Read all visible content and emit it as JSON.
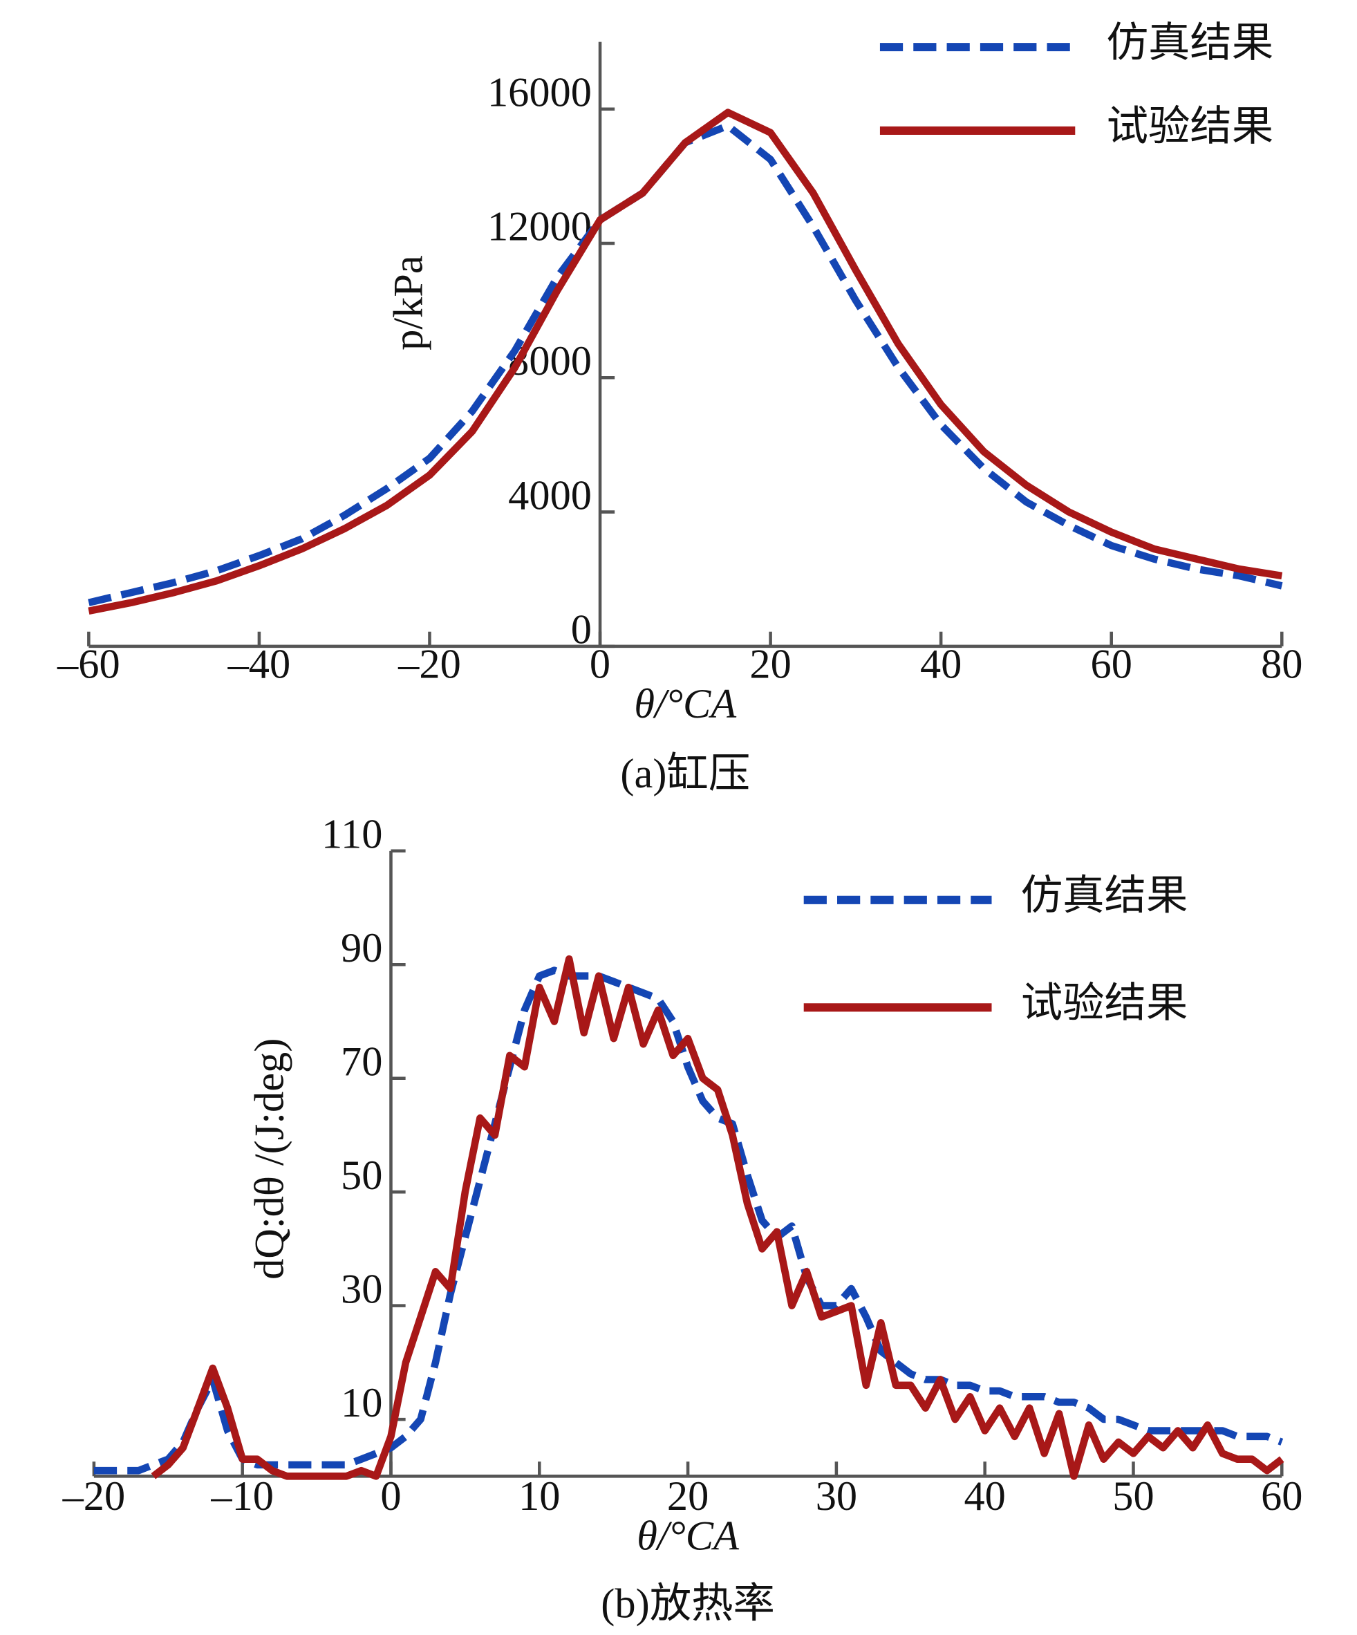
{
  "chart_data": [
    {
      "type": "line",
      "caption": "(a)缸压",
      "xlabel": "θ/°CA",
      "ylabel": "p/kPa",
      "x": [
        -60,
        -55,
        -50,
        -45,
        -40,
        -35,
        -30,
        -25,
        -20,
        -15,
        -10,
        -5,
        0,
        5,
        10,
        15,
        20,
        25,
        30,
        35,
        40,
        45,
        50,
        55,
        60,
        65,
        70,
        75,
        80
      ],
      "xlim": [
        -60,
        80
      ],
      "xticks": [
        {
          "value": -60,
          "label": "–60"
        },
        {
          "value": -40,
          "label": "–40"
        },
        {
          "value": -20,
          "label": "–20"
        },
        0,
        20,
        40,
        60,
        80
      ],
      "ylim": [
        0,
        18000
      ],
      "yticks": [
        0,
        4000,
        8000,
        12000,
        16000
      ],
      "legend": "upper right",
      "series": [
        {
          "name": "仿真结果",
          "color": "#1446b4",
          "dash": true,
          "values": [
            1300,
            1600,
            1900,
            2250,
            2700,
            3200,
            3900,
            4700,
            5600,
            7000,
            8800,
            11000,
            12700,
            13500,
            15000,
            15500,
            14500,
            12500,
            10300,
            8300,
            6600,
            5300,
            4300,
            3600,
            3000,
            2600,
            2300,
            2100,
            1800
          ]
        },
        {
          "name": "试验结果",
          "color": "#a81818",
          "dash": false,
          "values": [
            1050,
            1300,
            1600,
            1950,
            2400,
            2900,
            3500,
            4200,
            5100,
            6400,
            8300,
            10600,
            12700,
            13500,
            15000,
            15900,
            15300,
            13500,
            11200,
            9000,
            7200,
            5800,
            4800,
            4000,
            3400,
            2900,
            2600,
            2300,
            2100
          ]
        }
      ]
    },
    {
      "type": "line",
      "caption": "(b)放热率",
      "xlabel": "θ/°CA",
      "ylabel": "dQ:dθ /(J:deg)",
      "x": [
        -20,
        -19,
        -18,
        -17,
        -16,
        -15,
        -14,
        -13,
        -12,
        -11,
        -10,
        -9,
        -8,
        -7,
        -6,
        -5,
        -4,
        -3,
        -2,
        -1,
        0,
        1,
        2,
        3,
        4,
        5,
        6,
        7,
        8,
        9,
        10,
        11,
        12,
        13,
        14,
        15,
        16,
        17,
        18,
        19,
        20,
        21,
        22,
        23,
        24,
        25,
        26,
        27,
        28,
        29,
        30,
        31,
        32,
        33,
        34,
        35,
        36,
        37,
        38,
        39,
        40,
        41,
        42,
        43,
        44,
        45,
        46,
        47,
        48,
        49,
        50,
        51,
        52,
        53,
        54,
        55,
        56,
        57,
        58,
        59,
        60
      ],
      "xlim": [
        -20,
        60
      ],
      "xticks": [
        {
          "value": -20,
          "label": "–20"
        },
        {
          "value": -10,
          "label": "–10"
        },
        0,
        10,
        20,
        30,
        40,
        50,
        60
      ],
      "ylim": [
        0,
        110
      ],
      "yticks": [
        10,
        30,
        50,
        70,
        90,
        110
      ],
      "legend": "upper right",
      "series": [
        {
          "name": "仿真结果",
          "color": "#1446b4",
          "dash": true,
          "values": [
            1,
            1,
            1,
            1,
            2,
            3,
            6,
            12,
            17,
            8,
            3,
            2,
            2,
            2,
            2,
            2,
            2,
            2,
            3,
            4,
            5,
            7,
            10,
            20,
            32,
            42,
            52,
            62,
            72,
            82,
            88,
            89,
            88,
            88,
            88,
            87,
            86,
            85,
            84,
            80,
            72,
            66,
            63,
            62,
            53,
            45,
            42,
            44,
            35,
            30,
            30,
            33,
            28,
            22,
            20,
            18,
            17,
            17,
            16,
            16,
            15,
            15,
            14,
            14,
            14,
            13,
            13,
            12,
            10,
            10,
            9,
            8,
            8,
            8,
            8,
            8,
            8,
            7,
            7,
            7,
            6
          ]
        },
        {
          "name": "试验结果",
          "color": "#a81818",
          "dash": false,
          "values": [
            null,
            null,
            null,
            null,
            0,
            2,
            5,
            12,
            19,
            12,
            3,
            3,
            1,
            0,
            0,
            0,
            0,
            0,
            1,
            0,
            7,
            20,
            28,
            36,
            33,
            50,
            63,
            60,
            74,
            72,
            86,
            80,
            91,
            78,
            88,
            77,
            86,
            76,
            82,
            74,
            77,
            70,
            68,
            60,
            48,
            40,
            43,
            30,
            36,
            28,
            29,
            30,
            16,
            27,
            16,
            16,
            12,
            17,
            10,
            14,
            8,
            12,
            7,
            12,
            4,
            11,
            0,
            9,
            3,
            6,
            4,
            7,
            5,
            8,
            5,
            9,
            4,
            3,
            3,
            1,
            3
          ]
        }
      ]
    }
  ]
}
